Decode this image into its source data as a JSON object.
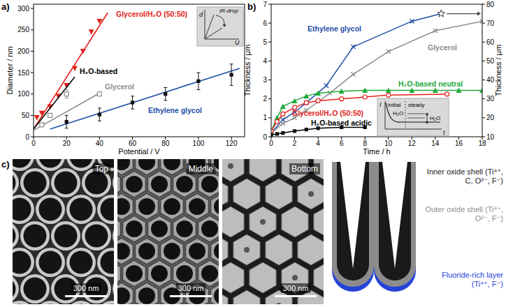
{
  "chart_data": [
    {
      "panel": "a)",
      "type": "scatter",
      "x_label": "Potential / V",
      "y_label": "Diameter / nm",
      "xlim": [
        0,
        128
      ],
      "ylim": [
        0,
        310
      ],
      "xticks": [
        0,
        20,
        40,
        60,
        80,
        100,
        120
      ],
      "yticks": [
        0,
        50,
        100,
        150,
        200,
        250,
        300
      ],
      "inset": {
        "y_label": "d",
        "x_label": "U",
        "annotation": "IR-drop"
      },
      "series": [
        {
          "name": "Glycerol/H₂O (50:50)",
          "color": "#e3231b",
          "marker": "triangle-down",
          "x": [
            2,
            5,
            10,
            15,
            20,
            25,
            30,
            35,
            40
          ],
          "values": [
            45,
            55,
            70,
            95,
            120,
            160,
            200,
            245,
            270
          ],
          "fit_x": [
            0,
            45
          ],
          "fit_y": [
            18,
            290
          ]
        },
        {
          "name": "H₂O-based",
          "color": "#000000",
          "type": "line",
          "marker": "none",
          "x": [
            0,
            25
          ],
          "values": [
            18,
            140
          ]
        },
        {
          "name": "Glycerol",
          "color": "#8c8c8c",
          "marker": "square-open",
          "x": [
            5,
            10,
            20,
            40
          ],
          "values": [
            28,
            50,
            100,
            100
          ],
          "errors": [
            null,
            null,
            10,
            null
          ],
          "fit_x": [
            0,
            40
          ],
          "fit_y": [
            15,
            102
          ]
        },
        {
          "name": "Ethylene glycol",
          "color": "#1f4ea6",
          "marker": "square",
          "x": [
            20,
            40,
            60,
            80,
            100,
            120
          ],
          "values": [
            35,
            52,
            80,
            100,
            130,
            145
          ],
          "errors": [
            15,
            15,
            15,
            15,
            20,
            25
          ],
          "fit_x": [
            10,
            125
          ],
          "fit_y": [
            18,
            160
          ]
        }
      ]
    },
    {
      "panel": "b)",
      "type": "line",
      "x_label": "Time / h",
      "y_label": "Thickness / µm",
      "y2_label": "Thickness / µm",
      "xlim": [
        0,
        18
      ],
      "ylim": [
        0,
        7
      ],
      "y2lim": [
        10,
        80
      ],
      "xticks": [
        0,
        2,
        4,
        6,
        8,
        10,
        12,
        14,
        16,
        18
      ],
      "yticks": [
        0,
        1,
        2,
        3,
        4,
        5,
        6,
        7
      ],
      "y2ticks": [
        10,
        20,
        30,
        40,
        50,
        60,
        70,
        80
      ],
      "inset": {
        "y_label": "I",
        "x_label": "t",
        "phases": [
          "initial",
          "steady"
        ],
        "annotations": [
          "H₂O",
          "H₂O"
        ]
      },
      "series": [
        {
          "name": "Ethylene glycol",
          "color": "#1f4ea6",
          "marker": "x",
          "axis": "y2",
          "x": [
            0,
            1,
            2,
            3,
            4.7,
            7,
            12,
            14.5
          ],
          "values": [
            12,
            19,
            23,
            28,
            37,
            57.5,
            71,
            75
          ]
        },
        {
          "name": "Glycerol",
          "color": "#8c8c8c",
          "marker": "x",
          "x": [
            0,
            1,
            2,
            3,
            5,
            7,
            10,
            14,
            18
          ],
          "values": [
            0.2,
            0.7,
            1.0,
            1.4,
            2.3,
            3.3,
            4.5,
            5.6,
            6.1
          ]
        },
        {
          "name": "H₂O-based neutral",
          "color": "#1faa3c",
          "marker": "triangle-up",
          "x": [
            0,
            0.5,
            1,
            2,
            3,
            4,
            6,
            8,
            10,
            12,
            14,
            16,
            18
          ],
          "values": [
            0.3,
            1.0,
            1.6,
            1.9,
            2.15,
            2.3,
            2.4,
            2.45,
            2.45,
            2.45,
            2.45,
            2.45,
            2.45
          ]
        },
        {
          "name": "Glycerol/H₂O (50:50)",
          "color": "#e3231b",
          "marker": "circle-open",
          "x": [
            0,
            0.5,
            1,
            2,
            3,
            4,
            6,
            8,
            10,
            15
          ],
          "values": [
            0.3,
            0.8,
            1.2,
            1.55,
            1.8,
            1.9,
            2.0,
            2.1,
            2.2,
            2.25
          ]
        },
        {
          "name": "H₂O-based acidic",
          "color": "#000000",
          "marker": "square",
          "x": [
            0,
            0.5,
            1,
            2,
            3,
            4,
            6,
            8
          ],
          "values": [
            0.1,
            0.15,
            0.2,
            0.3,
            0.38,
            0.45,
            0.5,
            0.5
          ]
        }
      ]
    }
  ],
  "panel_c": {
    "panel": "c)",
    "images": [
      {
        "label": "Top",
        "scale_bar": "300 nm"
      },
      {
        "label": "Middle",
        "scale_bar": "300 nm"
      },
      {
        "label": "Bottom",
        "scale_bar": "300 nm"
      }
    ],
    "schematic": {
      "layers": [
        {
          "name": "Inner oxide shell (Ti⁴⁺, C, O²⁻, F⁻)",
          "color": "#1a1a1a"
        },
        {
          "name": "Outer oxide shell (Ti⁴⁺, O²⁻, F⁻)",
          "color": "#8c8c8c"
        },
        {
          "name": "Fluoride-rich layer (Ti⁴⁺, F⁻)",
          "color": "#2443d8"
        }
      ]
    }
  }
}
